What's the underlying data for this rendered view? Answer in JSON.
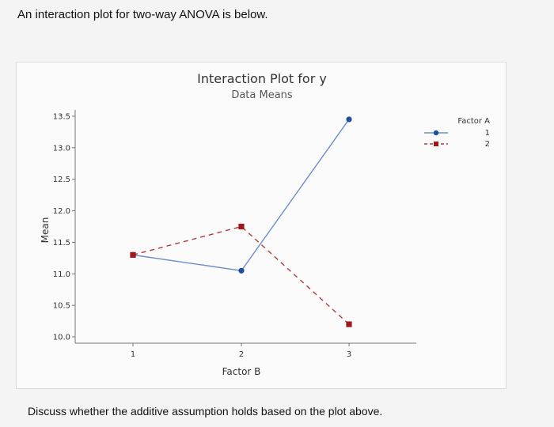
{
  "question": {
    "intro": "An interaction plot for two-way ANOVA is below.",
    "prompt": "Discuss whether the additive assumption holds based on the plot above."
  },
  "colors": {
    "series1": "#1f4e9c",
    "series1_line": "#6f8fc7",
    "series2": "#9e1a1a",
    "series2_line": "#b23a3a",
    "axis": "#777777"
  },
  "chart_data": {
    "type": "line",
    "title": "Interaction Plot for y",
    "subtitle": "Data Means",
    "xlabel": "Factor B",
    "ylabel": "Mean",
    "x": [
      "1",
      "2",
      "3"
    ],
    "ylim": [
      9.9,
      13.6
    ],
    "yticks": [
      "10.0",
      "10.5",
      "11.0",
      "11.5",
      "12.0",
      "12.5",
      "13.0",
      "13.5"
    ],
    "grid": false,
    "legend": {
      "title": "Factor A",
      "placement": "right"
    },
    "series": [
      {
        "name": "1",
        "values": [
          11.3,
          11.05,
          13.45
        ],
        "marker": "circle",
        "line": "solid"
      },
      {
        "name": "2",
        "values": [
          11.3,
          11.75,
          10.2
        ],
        "marker": "square",
        "line": "dashed"
      }
    ]
  }
}
